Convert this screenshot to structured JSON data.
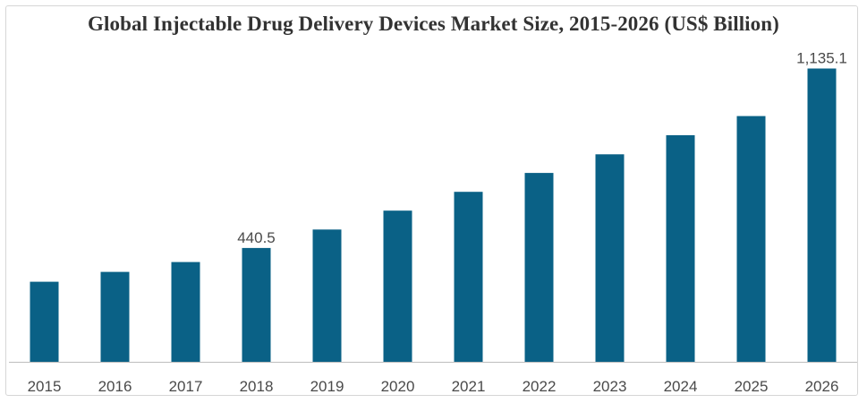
{
  "chart_data": {
    "type": "bar",
    "title": "Global Injectable Drug Delivery Devices Market Size, 2015-2026 (US$ Billion)",
    "categories": [
      "2015",
      "2016",
      "2017",
      "2018",
      "2019",
      "2020",
      "2021",
      "2022",
      "2023",
      "2024",
      "2025",
      "2026"
    ],
    "values": [
      310.0,
      348.0,
      386.0,
      440.5,
      512.0,
      585.0,
      658.0,
      731.0,
      803.0,
      877.0,
      951.0,
      1135.1
    ],
    "data_labels": [
      {
        "index": 3,
        "text": "440.5"
      },
      {
        "index": 11,
        "text": "1,135.1"
      }
    ],
    "ylim": [
      0,
      1200
    ],
    "grid": false,
    "bar_color": "#0a6186",
    "axis_color": "#bdbdbd"
  }
}
